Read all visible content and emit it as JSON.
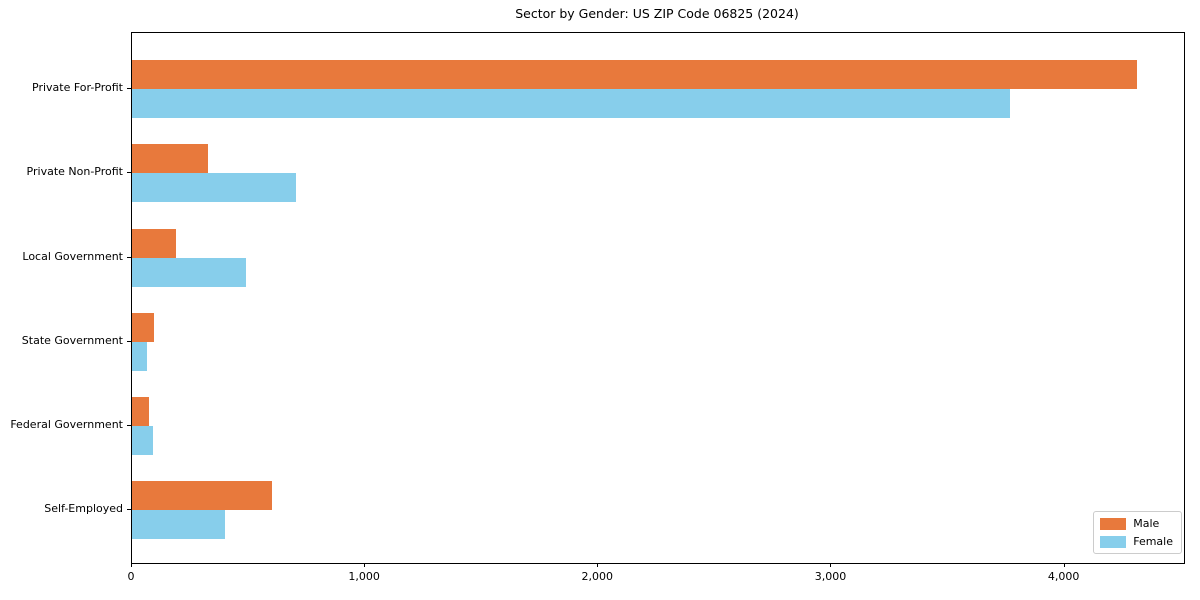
{
  "title": "Sector by Gender: US ZIP Code 06825 (2024)",
  "chart_data": {
    "type": "bar",
    "orientation": "horizontal",
    "title": "Sector by Gender: US ZIP Code 06825 (2024)",
    "categories": [
      "Private For-Profit",
      "Private Non-Profit",
      "Local Government",
      "State Government",
      "Federal Government",
      "Self-Employed"
    ],
    "series": [
      {
        "name": "Male",
        "color": "#e8793c",
        "values": [
          4310,
          326,
          187,
          93,
          75,
          600
        ]
      },
      {
        "name": "Female",
        "color": "#87ceeb",
        "values": [
          3764,
          705,
          487,
          64,
          90,
          400
        ]
      }
    ],
    "xlabel": "",
    "ylabel": "",
    "xlim": [
      0,
      4512
    ],
    "xticks": [
      0,
      1000,
      2000,
      3000,
      4000
    ],
    "xtick_labels": [
      "0",
      "1,000",
      "2,000",
      "3,000",
      "4,000"
    ],
    "grid": false,
    "legend": {
      "position": "lower right",
      "entries": [
        "Male",
        "Female"
      ]
    }
  },
  "colors": {
    "male": "#e8793c",
    "female": "#87ceeb",
    "spine": "#000000",
    "background": "#ffffff",
    "legend_border": "#cccccc"
  }
}
